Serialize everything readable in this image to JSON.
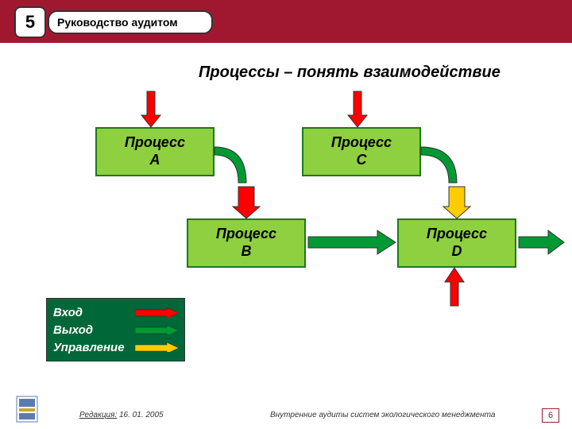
{
  "header": {
    "number": "5",
    "title": "Руководство аудитом",
    "band_color": "#a01830"
  },
  "subtitle": "Процессы – понять взаимодействие",
  "processes": {
    "a": "Процесс\nA",
    "b": "Процесс\nB",
    "c": "Процесс\nC",
    "d": "Процесс\nD",
    "box_fill": "#8ed040",
    "box_border": "#1a7a1a"
  },
  "arrows": {
    "input_color": "#ff0000",
    "output_color": "#009933",
    "control_color": "#ffcc00",
    "stroke": "#333333"
  },
  "legend": {
    "bg": "#006838",
    "rows": [
      {
        "label": "Вход",
        "color": "#ff0000"
      },
      {
        "label": "Выход",
        "color": "#009933"
      },
      {
        "label": "Управление",
        "color": "#ffcc00"
      }
    ]
  },
  "footer": {
    "revision_prefix": "Редакция:",
    "revision_date": "16. 01. 2005",
    "center_text": "Внутренние аудиты систем экологического менеджмента",
    "page": "6"
  }
}
